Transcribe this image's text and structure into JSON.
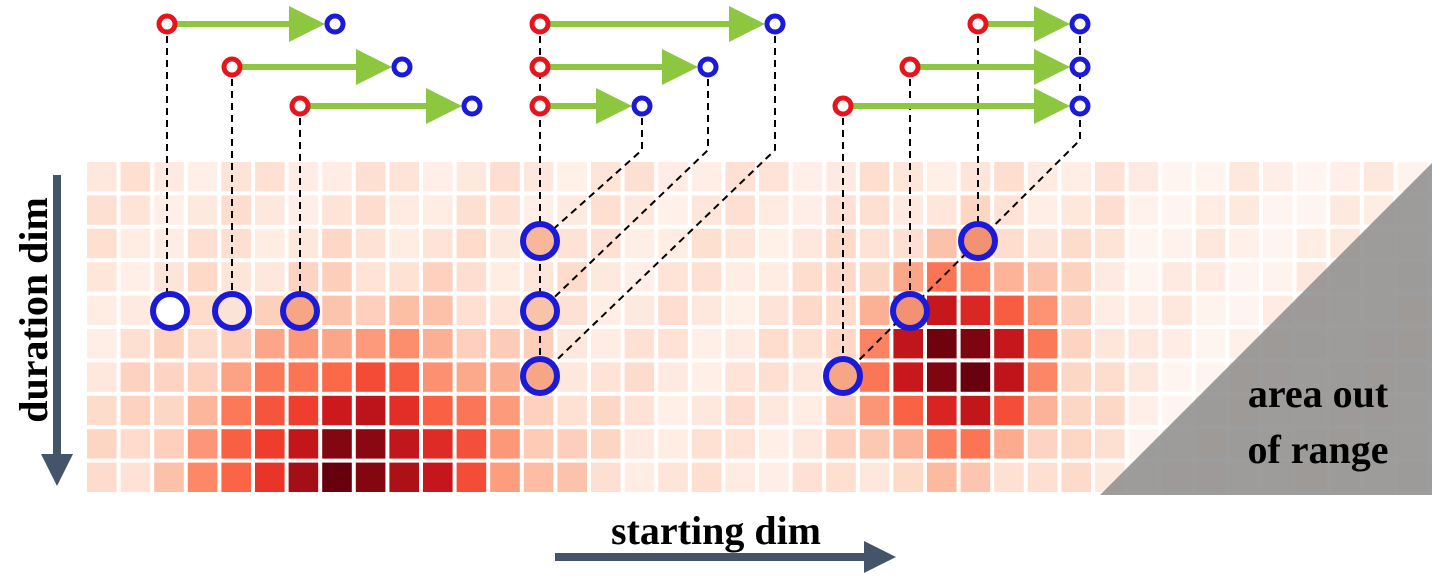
{
  "labels": {
    "duration_axis": "duration dim",
    "starting_axis": "starting dim",
    "out_of_range": [
      "area out",
      "of range"
    ]
  }
}
